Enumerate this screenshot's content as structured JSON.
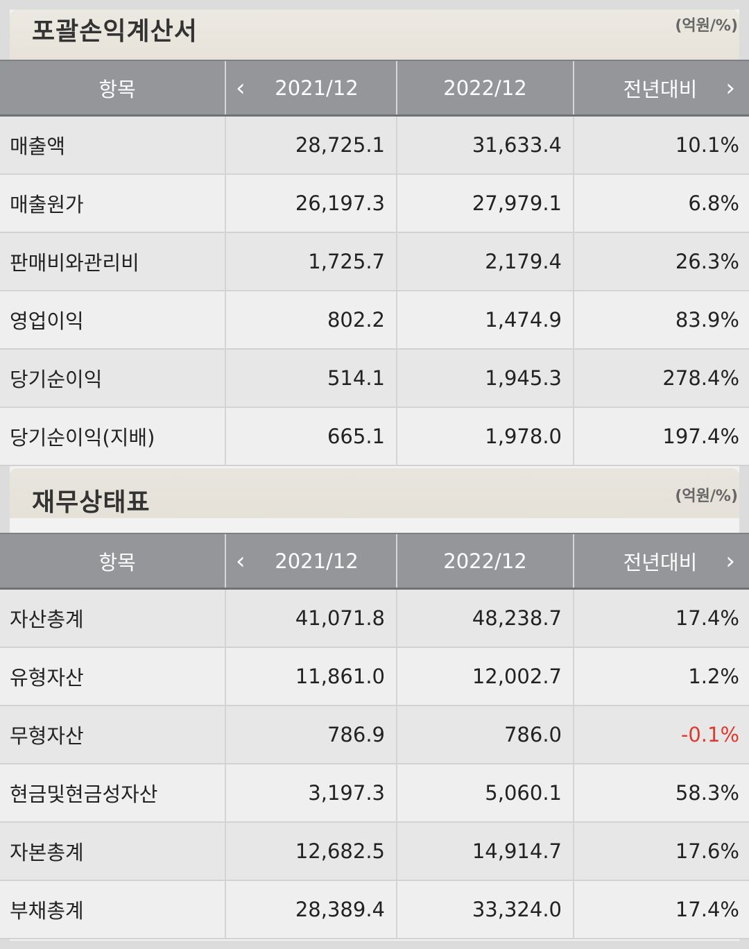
{
  "sections": [
    {
      "title": "포괄손익계산서",
      "unit": "(억원/%)",
      "headers": {
        "item": "항목",
        "col1": "2021/12",
        "col2": "2022/12",
        "col3": "전년대비"
      },
      "rows": [
        {
          "label": "매출액",
          "v2021": "28,725.1",
          "v2022": "31,633.4",
          "change": "10.1%"
        },
        {
          "label": "매출원가",
          "v2021": "26,197.3",
          "v2022": "27,979.1",
          "change": "6.8%"
        },
        {
          "label": "판매비와관리비",
          "v2021": "1,725.7",
          "v2022": "2,179.4",
          "change": "26.3%"
        },
        {
          "label": "영업이익",
          "v2021": "802.2",
          "v2022": "1,474.9",
          "change": "83.9%"
        },
        {
          "label": "당기순이익",
          "v2021": "514.1",
          "v2022": "1,945.3",
          "change": "278.4%"
        },
        {
          "label": "당기순이익(지배)",
          "v2021": "665.1",
          "v2022": "1,978.0",
          "change": "197.4%"
        }
      ]
    },
    {
      "title": "재무상태표",
      "unit": "(억원/%)",
      "headers": {
        "item": "항목",
        "col1": "2021/12",
        "col2": "2022/12",
        "col3": "전년대비"
      },
      "rows": [
        {
          "label": "자산총계",
          "v2021": "41,071.8",
          "v2022": "48,238.7",
          "change": "17.4%"
        },
        {
          "label": "유형자산",
          "v2021": "11,861.0",
          "v2022": "12,002.7",
          "change": "1.2%"
        },
        {
          "label": "무형자산",
          "v2021": "786.9",
          "v2022": "786.0",
          "change": "-0.1%"
        },
        {
          "label": "현금및현금성자산",
          "v2021": "3,197.3",
          "v2022": "5,060.1",
          "change": "58.3%"
        },
        {
          "label": "자본총계",
          "v2021": "12,682.5",
          "v2022": "14,914.7",
          "change": "17.6%"
        },
        {
          "label": "부채총계",
          "v2021": "28,389.4",
          "v2022": "33,324.0",
          "change": "17.4%"
        }
      ]
    }
  ],
  "nav": {
    "prev_icon": "chevron-left-icon",
    "next_icon": "chevron-right-icon",
    "prev_glyph": "‹",
    "next_glyph": "›"
  },
  "colors": {
    "negative": "#e0382f",
    "header_bg": "#94969a"
  }
}
